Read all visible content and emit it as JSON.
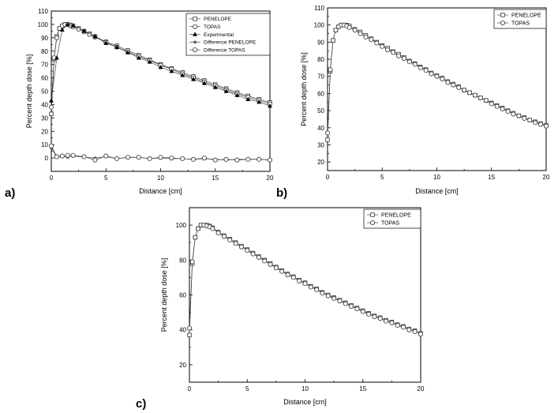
{
  "panel_labels": [
    "a)",
    "b)",
    "c)"
  ],
  "chart_data": [
    {
      "type": "line",
      "panel": "a)",
      "xlabel": "Distance [cm]",
      "ylabel": "Percent depth dose [%]",
      "xlim": [
        0,
        20
      ],
      "ylim": [
        -10,
        110
      ],
      "xticks": [
        0,
        5,
        10,
        15,
        20
      ],
      "yticks": [
        0,
        10,
        20,
        30,
        40,
        50,
        60,
        70,
        80,
        90,
        100,
        110
      ],
      "legend_position": "top-right",
      "series": [
        {
          "name": "PENELOPE",
          "marker": "square",
          "x": [
            0,
            0.25,
            0.5,
            0.75,
            1,
            1.25,
            1.5,
            1.75,
            2,
            2.5,
            3,
            3.5,
            4,
            5,
            6,
            7,
            8,
            9,
            10,
            11,
            12,
            13,
            14,
            15,
            16,
            17,
            18,
            19,
            20
          ],
          "y": [
            33,
            74,
            91,
            97,
            99,
            100,
            100,
            99.5,
            99,
            97,
            95,
            93,
            91,
            87,
            84,
            80.5,
            77,
            73.5,
            70,
            67,
            64,
            61,
            58,
            55,
            52,
            49,
            46.5,
            44,
            41.5
          ]
        },
        {
          "name": "TOPAS",
          "marker": "circle",
          "x": [
            0,
            0.25,
            0.5,
            0.75,
            1,
            1.25,
            1.5,
            1.75,
            2,
            2.5,
            3,
            3.5,
            4,
            5,
            6,
            7,
            8,
            9,
            10,
            11,
            12,
            13,
            14,
            15,
            16,
            17,
            18,
            19,
            20
          ],
          "y": [
            38,
            75,
            90,
            97,
            99,
            100,
            100,
            99,
            98,
            96.5,
            94.5,
            92.5,
            90.5,
            86.5,
            83,
            79.5,
            76,
            73,
            69.5,
            66.5,
            63,
            60,
            57,
            54,
            51,
            48,
            45.5,
            43,
            40.5
          ]
        },
        {
          "name": "Experimental",
          "marker": "triangle",
          "x": [
            0,
            0.5,
            1,
            1.5,
            2,
            3,
            4,
            5,
            6,
            7,
            8,
            9,
            10,
            11,
            12,
            13,
            14,
            15,
            16,
            17,
            18,
            19,
            20
          ],
          "y": [
            43,
            75,
            96,
            100,
            99,
            95,
            91,
            86,
            83,
            79,
            75,
            72,
            68,
            65,
            62,
            59,
            56,
            53,
            50,
            47,
            44,
            42,
            39
          ]
        },
        {
          "name": "Difference PENELOPE",
          "marker": "star",
          "x": [
            0,
            0.5,
            1,
            1.5,
            2,
            3,
            4,
            5,
            6,
            7,
            8,
            9,
            10,
            11,
            12,
            13,
            14,
            15,
            16,
            17,
            18,
            19,
            20
          ],
          "y": [
            8,
            0.5,
            1,
            0.5,
            1.5,
            0.5,
            0,
            1,
            -0.5,
            0.5,
            0.5,
            -0.5,
            0,
            -0.5,
            -0.5,
            -1,
            -0.5,
            -1,
            -1.5,
            -1,
            -1,
            -1,
            -1.5
          ]
        },
        {
          "name": "Difference TOPAS",
          "marker": "circle-open",
          "x": [
            0,
            0.5,
            1,
            1.5,
            2,
            3,
            4,
            5,
            6,
            7,
            8,
            9,
            10,
            11,
            12,
            13,
            14,
            15,
            16,
            17,
            18,
            19,
            20
          ],
          "y": [
            9,
            1,
            1.5,
            2,
            2,
            1,
            -1.5,
            1.5,
            -0.5,
            0.5,
            0.5,
            -0.5,
            0.5,
            0,
            -0.5,
            -1,
            0,
            -1.5,
            -1,
            -1.5,
            -1,
            -1,
            -1.5
          ]
        }
      ]
    },
    {
      "type": "line",
      "panel": "b)",
      "xlabel": "Distance [cm]",
      "ylabel": "Percent depth dose [%]",
      "xlim": [
        0,
        20
      ],
      "ylim": [
        15,
        110
      ],
      "xticks": [
        0,
        5,
        10,
        15,
        20
      ],
      "yticks": [
        20,
        30,
        40,
        50,
        60,
        70,
        80,
        90,
        100,
        110
      ],
      "legend_position": "top-right",
      "series": [
        {
          "name": "PENELOPE",
          "marker": "square",
          "x": [
            0,
            0.25,
            0.5,
            0.75,
            1,
            1.25,
            1.5,
            1.75,
            2,
            2.5,
            3,
            3.5,
            4,
            4.5,
            5,
            5.5,
            6,
            6.5,
            7,
            7.5,
            8,
            8.5,
            9,
            9.5,
            10,
            10.5,
            11,
            11.5,
            12,
            12.5,
            13,
            13.5,
            14,
            14.5,
            15,
            15.5,
            16,
            16.5,
            17,
            17.5,
            18,
            18.5,
            19,
            19.5,
            20
          ],
          "y": [
            33,
            73,
            91,
            97,
            99,
            100,
            100,
            100,
            99.5,
            97.5,
            96,
            94,
            92,
            90,
            88,
            86.5,
            84.5,
            83,
            81,
            79,
            77.5,
            75.5,
            74,
            72,
            70.5,
            69,
            67,
            65.5,
            64,
            62,
            60.5,
            59,
            57.5,
            56,
            54.5,
            53,
            51.5,
            50,
            48.5,
            47,
            46,
            44.5,
            43.5,
            42.5,
            41.5
          ]
        },
        {
          "name": "TOPAS",
          "marker": "circle",
          "x": [
            0,
            0.25,
            0.5,
            0.75,
            1,
            1.25,
            1.5,
            1.75,
            2,
            2.5,
            3,
            3.5,
            4,
            4.5,
            5,
            5.5,
            6,
            6.5,
            7,
            7.5,
            8,
            8.5,
            9,
            9.5,
            10,
            10.5,
            11,
            11.5,
            12,
            12.5,
            13,
            13.5,
            14,
            14.5,
            15,
            15.5,
            16,
            16.5,
            17,
            17.5,
            18,
            18.5,
            19,
            19.5,
            20
          ],
          "y": [
            37,
            74,
            91,
            97,
            99,
            100,
            100,
            99.5,
            98.5,
            97,
            95,
            93,
            91.5,
            89.5,
            87.5,
            85.5,
            84,
            82,
            80.5,
            78.5,
            77,
            75,
            73.5,
            71.5,
            70,
            68.5,
            66.5,
            65,
            63.5,
            62,
            60.5,
            59,
            57.5,
            56,
            54,
            52.5,
            51,
            49.5,
            48,
            47,
            45.5,
            44.5,
            43,
            42,
            41
          ]
        }
      ]
    },
    {
      "type": "line",
      "panel": "c)",
      "xlabel": "Distance [cm]",
      "ylabel": "Percent depth dose [%]",
      "xlim": [
        0,
        20
      ],
      "ylim": [
        10,
        110
      ],
      "xticks": [
        0,
        5,
        10,
        15,
        20
      ],
      "yticks": [
        20,
        40,
        60,
        80,
        100
      ],
      "legend_position": "top-right",
      "series": [
        {
          "name": "PENELOPE",
          "marker": "square",
          "x": [
            0,
            0.25,
            0.5,
            0.75,
            1,
            1.25,
            1.5,
            1.75,
            2,
            2.5,
            3,
            3.5,
            4,
            4.5,
            5,
            5.5,
            6,
            6.5,
            7,
            7.5,
            8,
            8.5,
            9,
            9.5,
            10,
            10.5,
            11,
            11.5,
            12,
            12.5,
            13,
            13.5,
            14,
            14.5,
            15,
            15.5,
            16,
            16.5,
            17,
            17.5,
            18,
            18.5,
            19,
            19.5,
            20
          ],
          "y": [
            37,
            78,
            93,
            98,
            100,
            100,
            100,
            99.5,
            98.5,
            96,
            94,
            92,
            90,
            88,
            86,
            84,
            82,
            80,
            78,
            76,
            74,
            72,
            70.5,
            68.5,
            67,
            65,
            63.5,
            61.5,
            60,
            58.5,
            57,
            55.5,
            54,
            52.5,
            51,
            49.5,
            48,
            47,
            45.5,
            44.5,
            43,
            42,
            40.5,
            39.5,
            38
          ]
        },
        {
          "name": "TOPAS",
          "marker": "circle",
          "x": [
            0,
            0.25,
            0.5,
            0.75,
            1,
            1.25,
            1.5,
            1.75,
            2,
            2.5,
            3,
            3.5,
            4,
            4.5,
            5,
            5.5,
            6,
            6.5,
            7,
            7.5,
            8,
            8.5,
            9,
            9.5,
            10,
            10.5,
            11,
            11.5,
            12,
            12.5,
            13,
            13.5,
            14,
            14.5,
            15,
            15.5,
            16,
            16.5,
            17,
            17.5,
            18,
            18.5,
            19,
            19.5,
            20
          ],
          "y": [
            41,
            79,
            93,
            98,
            100,
            100,
            99.5,
            99,
            98,
            95.5,
            93.5,
            91.5,
            89.5,
            87.5,
            85.5,
            83.5,
            81.5,
            79.5,
            77.5,
            75.5,
            73.5,
            71.5,
            70,
            68,
            66.5,
            64.5,
            63,
            61,
            59.5,
            58,
            56.5,
            55,
            53.5,
            52,
            50.5,
            49,
            47.5,
            46.5,
            45,
            44,
            42.5,
            41.5,
            40,
            39,
            37.5
          ]
        }
      ]
    }
  ]
}
